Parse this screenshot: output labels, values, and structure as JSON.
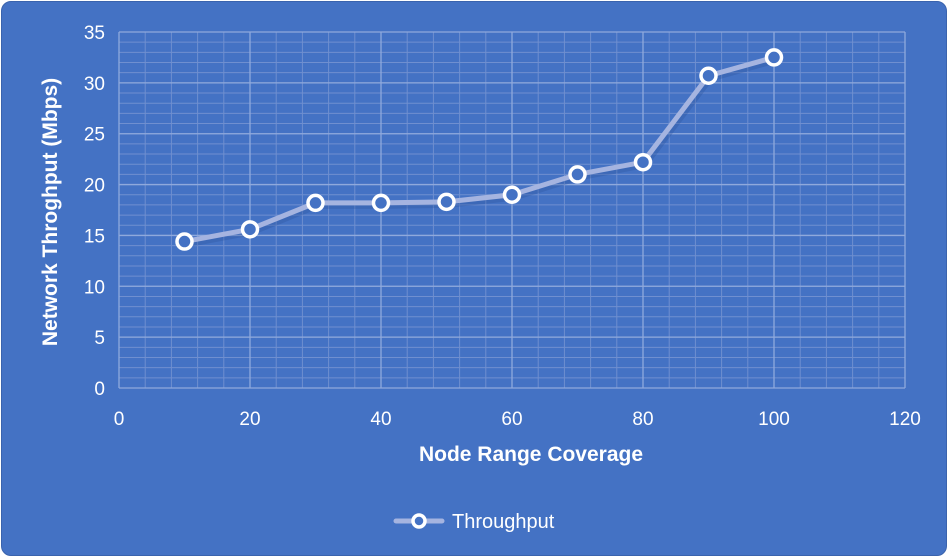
{
  "colors": {
    "background": "#4472c4",
    "grid_major": "#8fa9dc",
    "grid_minor": "#6f8fd0",
    "series_line": "#a5b4e0",
    "marker_fill": "#4472c4",
    "marker_stroke": "#ffffff",
    "text": "#ffffff"
  },
  "chart_data": {
    "type": "line",
    "title": "",
    "xlabel": "Node Range Coverage",
    "ylabel": "Network Throghput (Mbps)",
    "xlim": [
      0,
      120
    ],
    "ylim": [
      0,
      35
    ],
    "x_ticks": [
      0,
      20,
      40,
      60,
      80,
      100,
      120
    ],
    "y_ticks": [
      0,
      5,
      10,
      15,
      20,
      25,
      30,
      35
    ],
    "x_tick_labels": [
      "0",
      "20",
      "40",
      "60",
      "80",
      "100",
      "120"
    ],
    "y_tick_labels": [
      "0",
      "5",
      "10",
      "15",
      "20",
      "25",
      "30",
      "35"
    ],
    "grid": true,
    "legend_position": "bottom",
    "series": [
      {
        "name": "Throughput",
        "marker": "circle-open",
        "x": [
          10,
          20,
          30,
          40,
          50,
          60,
          70,
          80,
          90,
          100
        ],
        "y": [
          14.4,
          15.6,
          18.2,
          18.2,
          18.3,
          19.0,
          21.0,
          22.2,
          30.7,
          32.5
        ]
      }
    ]
  }
}
